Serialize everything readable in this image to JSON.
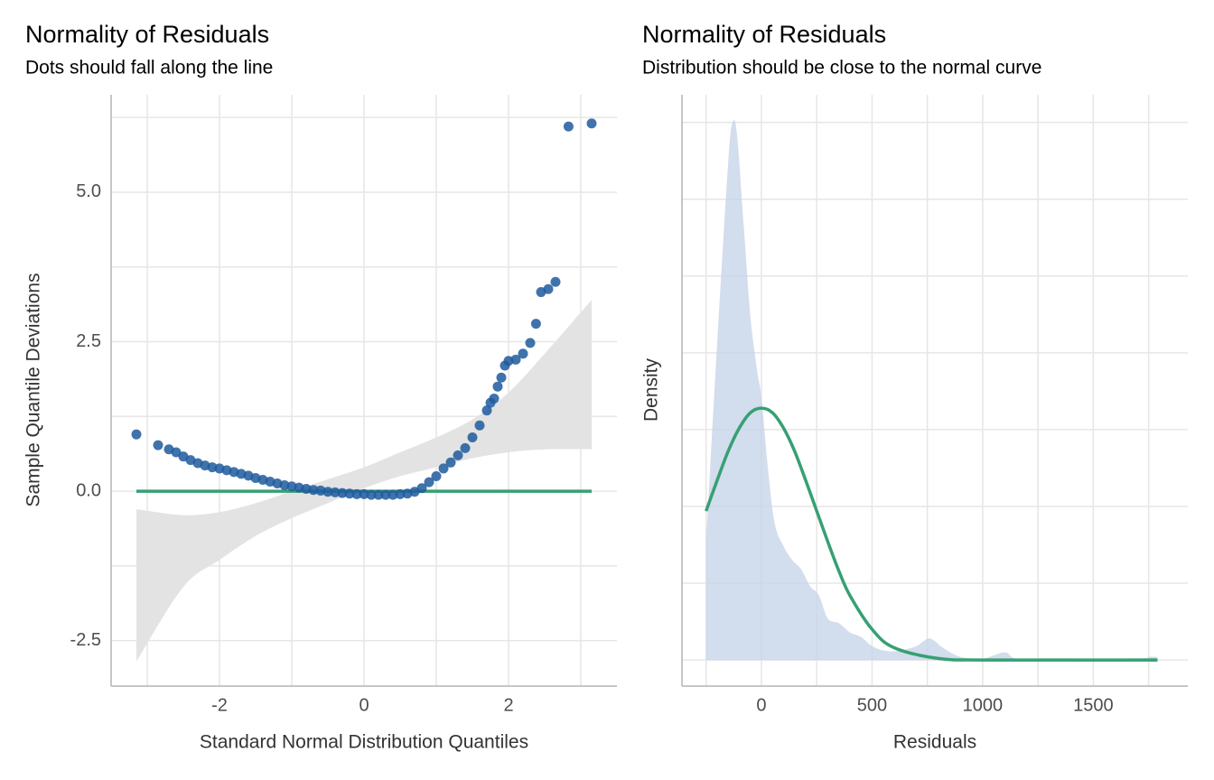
{
  "chart_data": [
    {
      "type": "scatter",
      "title": "Normality of Residuals",
      "subtitle": "Dots should fall along the line",
      "xlabel": "Standard Normal Distribution Quantiles",
      "ylabel": "Sample Quantile Deviations",
      "xlim": [
        -3.5,
        3.5
      ],
      "ylim": [
        -3.26,
        6.63
      ],
      "xticks": [
        -2,
        0,
        2
      ],
      "yticks": [
        {
          "value": 5,
          "label": "5.0"
        },
        {
          "value": 2.5,
          "label": "2.5"
        },
        {
          "value": 0,
          "label": "0.0"
        },
        -2.5
      ],
      "xminor": [
        -3,
        -1,
        1,
        3
      ],
      "yminor": [
        -1.25,
        1.25,
        3.75,
        6.25
      ],
      "grid": true,
      "color": "#1f5a9d",
      "x": [
        -3.15,
        -2.85,
        -2.7,
        -2.6,
        -2.5,
        -2.4,
        -2.3,
        -2.2,
        -2.1,
        -2.0,
        -1.9,
        -1.8,
        -1.7,
        -1.6,
        -1.5,
        -1.4,
        -1.3,
        -1.2,
        -1.1,
        -1.0,
        -0.9,
        -0.8,
        -0.7,
        -0.6,
        -0.5,
        -0.4,
        -0.3,
        -0.2,
        -0.1,
        0,
        0.1,
        0.2,
        0.3,
        0.4,
        0.5,
        0.6,
        0.7,
        0.8,
        0.9,
        1.0,
        1.1,
        1.2,
        1.3,
        1.4,
        1.5,
        1.6,
        1.7,
        1.75,
        1.8,
        1.85,
        1.9,
        1.95,
        2.0,
        2.1,
        2.2,
        2.3,
        2.38,
        2.45,
        2.55,
        2.65,
        2.83,
        3.15
      ],
      "y": [
        0.95,
        0.77,
        0.7,
        0.65,
        0.58,
        0.52,
        0.47,
        0.43,
        0.4,
        0.38,
        0.35,
        0.32,
        0.29,
        0.26,
        0.22,
        0.19,
        0.16,
        0.13,
        0.1,
        0.08,
        0.06,
        0.04,
        0.02,
        0.01,
        -0.01,
        -0.02,
        -0.03,
        -0.04,
        -0.05,
        -0.05,
        -0.06,
        -0.06,
        -0.06,
        -0.06,
        -0.05,
        -0.04,
        -0.01,
        0.05,
        0.15,
        0.25,
        0.38,
        0.48,
        0.6,
        0.72,
        0.9,
        1.1,
        1.35,
        1.48,
        1.55,
        1.75,
        1.9,
        2.1,
        2.18,
        2.2,
        2.3,
        2.48,
        2.8,
        3.33,
        3.38,
        3.5,
        6.1,
        6.15
      ],
      "band": {
        "color": "#e3e3e3",
        "x": [
          -3.15,
          -2.5,
          -2,
          -1.5,
          -1,
          -0.5,
          0,
          0.5,
          1,
          1.5,
          2,
          2.5,
          3.15
        ],
        "upper": [
          -0.3,
          -0.4,
          -0.35,
          -0.2,
          0.0,
          0.2,
          0.4,
          0.65,
          0.9,
          1.2,
          1.65,
          2.3,
          3.2
        ],
        "lower": [
          -2.85,
          -1.6,
          -1.15,
          -0.75,
          -0.45,
          -0.2,
          0.05,
          0.25,
          0.4,
          0.55,
          0.65,
          0.7,
          0.7
        ]
      },
      "reference_line": {
        "color": "#36a073",
        "x": [
          -3.15,
          3.15
        ],
        "y": [
          0,
          0
        ]
      }
    },
    {
      "type": "density",
      "title": "Normality of Residuals",
      "subtitle": "Distribution should be close to the normal curve",
      "xlabel": "Residuals",
      "ylabel": "Density",
      "xlim": [
        -359,
        1927
      ],
      "ylim": [
        -0.00017,
        0.00368
      ],
      "xticks": [
        0,
        500,
        1000,
        1500
      ],
      "xminor": [
        -250,
        250,
        750,
        1250,
        1750
      ],
      "ygrid": [
        0,
        0.0005,
        0.001,
        0.0015,
        0.002,
        0.0025,
        0.003,
        0.0035
      ],
      "grid": true,
      "density": {
        "color": "#c7d5e8",
        "x": [
          -250,
          -200,
          -150,
          -130,
          -110,
          -80,
          -50,
          -20,
          0,
          30,
          60,
          100,
          140,
          180,
          220,
          260,
          300,
          350,
          400,
          450,
          500,
          560,
          620,
          700,
          760,
          820,
          900,
          1000,
          1100,
          1150,
          1300,
          1700,
          1750,
          1790
        ],
        "y": [
          0.00077,
          0.00206,
          0.00324,
          0.0035,
          0.00342,
          0.00283,
          0.00224,
          0.00189,
          0.00171,
          0.00124,
          0.00089,
          0.00074,
          0.00065,
          0.00059,
          0.00048,
          0.00042,
          0.00027,
          0.00024,
          0.00018,
          0.00015,
          9e-05,
          6e-05,
          6e-05,
          9e-05,
          0.00014,
          8e-05,
          2e-05,
          1e-05,
          5e-05,
          1e-05,
          1e-05,
          1e-05,
          2e-05,
          2e-05
        ]
      },
      "normal_curve": {
        "color": "#36a073",
        "x": [
          -250,
          -200,
          -150,
          -100,
          -50,
          0,
          50,
          100,
          150,
          200,
          250,
          300,
          350,
          400,
          500,
          600,
          800,
          1000,
          1400,
          1790
        ],
        "y": [
          0.00097,
          0.00117,
          0.00136,
          0.00151,
          0.00161,
          0.00164,
          0.00161,
          0.00151,
          0.00136,
          0.00117,
          0.00097,
          0.00077,
          0.00058,
          0.00042,
          0.0002,
          8e-05,
          1e-05,
          0,
          0,
          0
        ]
      }
    }
  ]
}
